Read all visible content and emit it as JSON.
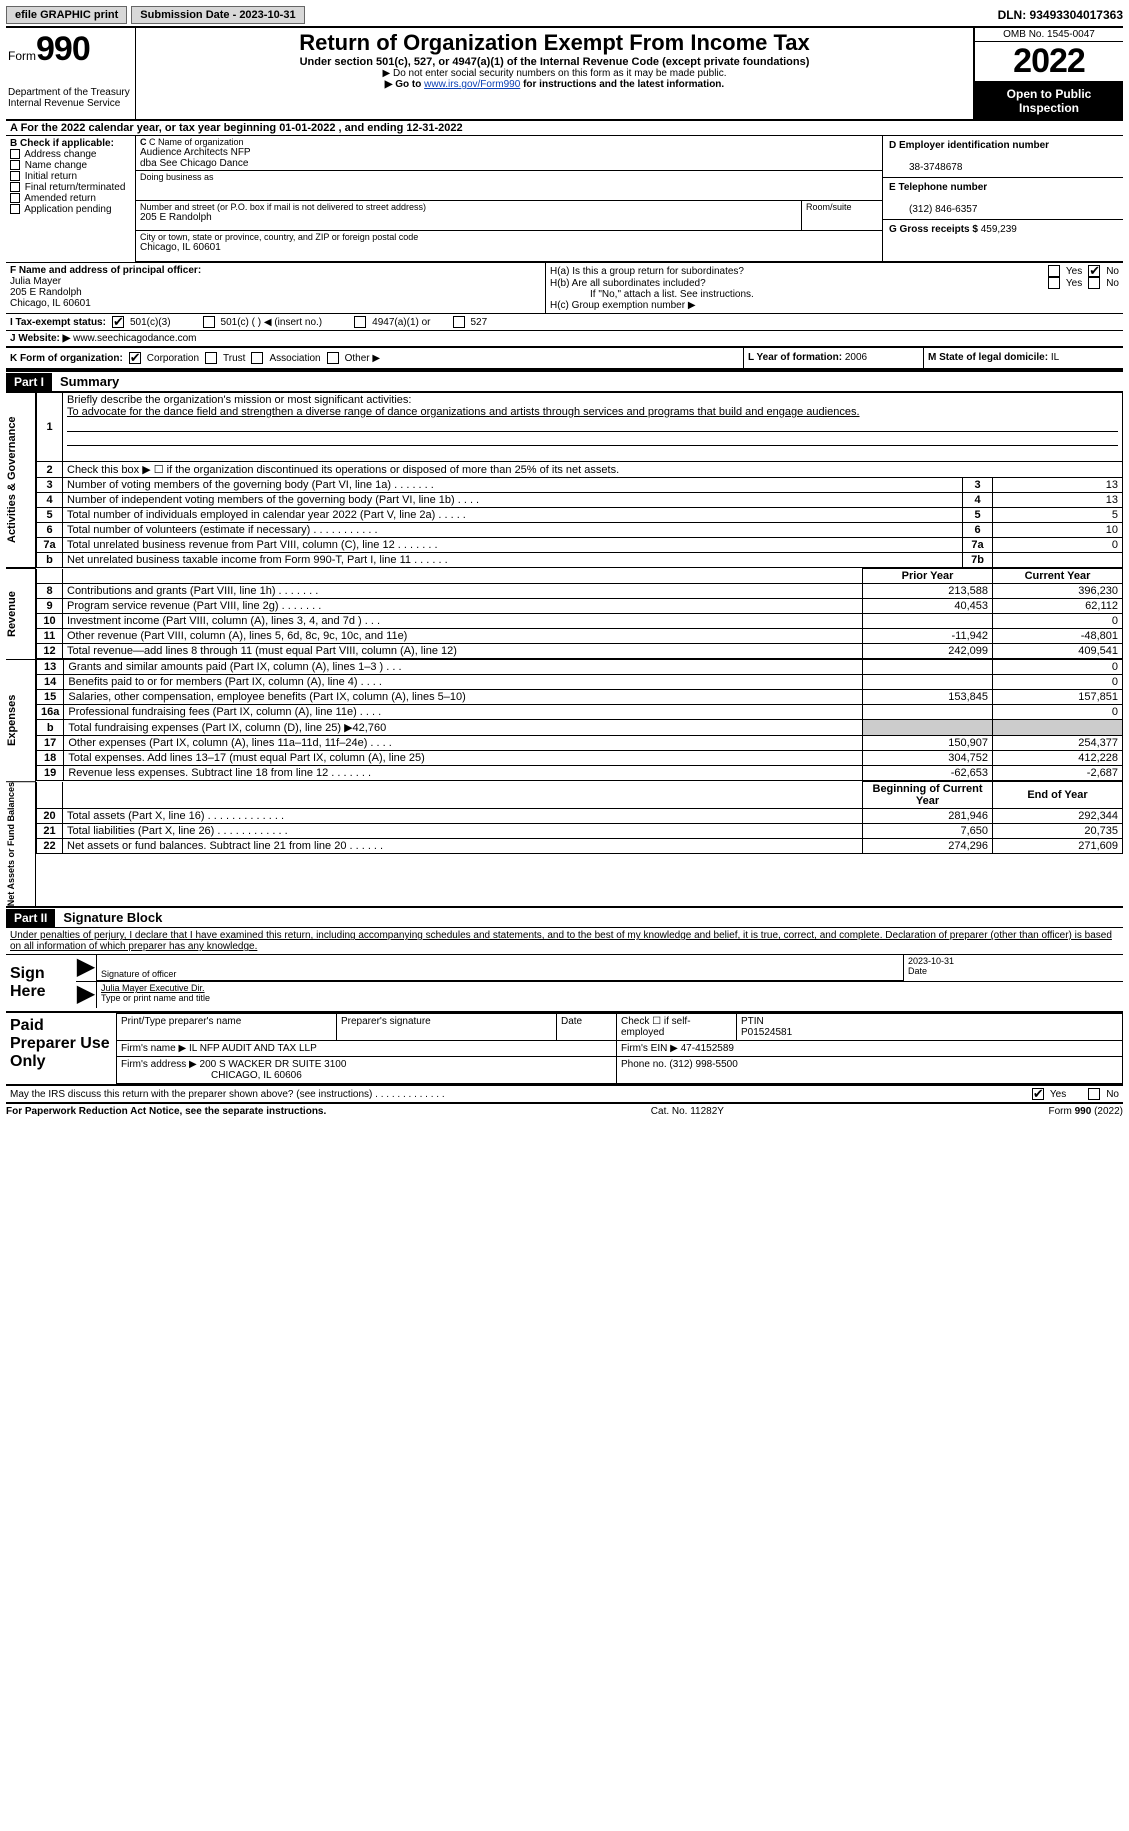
{
  "topbar": {
    "efile_label": "efile GRAPHIC print",
    "submission_label": "Submission Date - 2023-10-31",
    "dln_label": "DLN: 93493304017363"
  },
  "header": {
    "form_word": "Form",
    "form_num": "990",
    "dept": "Department of the Treasury Internal Revenue Service",
    "title": "Return of Organization Exempt From Income Tax",
    "sub1": "Under section 501(c), 527, or 4947(a)(1) of the Internal Revenue Code (except private foundations)",
    "sub2": "▶ Do not enter social security numbers on this form as it may be made public.",
    "sub3_pre": "▶ Go to ",
    "sub3_link": "www.irs.gov/Form990",
    "sub3_post": " for instructions and the latest information.",
    "omb": "OMB No. 1545-0047",
    "year": "2022",
    "inspect": "Open to Public Inspection"
  },
  "A": {
    "text": "A For the 2022 calendar year, or tax year beginning 01-01-2022    , and ending 12-31-2022"
  },
  "B": {
    "title": "B Check if applicable:",
    "opts": [
      "Address change",
      "Name change",
      "Initial return",
      "Final return/terminated",
      "Amended return",
      "Application pending"
    ]
  },
  "C": {
    "name_label": "C Name of organization",
    "name1": "Audience Architects NFP",
    "name2": "dba See Chicago Dance",
    "dba_label": "Doing business as",
    "street_label": "Number and street (or P.O. box if mail is not delivered to street address)",
    "suite_label": "Room/suite",
    "street": "205 E Randolph",
    "city_label": "City or town, state or province, country, and ZIP or foreign postal code",
    "city": "Chicago, IL  60601"
  },
  "D": {
    "label": "D Employer identification number",
    "value": "38-3748678"
  },
  "E": {
    "label": "E Telephone number",
    "value": "(312) 846-6357"
  },
  "G": {
    "label": "G Gross receipts $",
    "value": "459,239"
  },
  "F": {
    "label": "F  Name and address of principal officer:",
    "name": "Julia Mayer",
    "addr1": "205 E Randolph",
    "addr2": "Chicago, IL  60601"
  },
  "H": {
    "a": "H(a)  Is this a group return for subordinates?",
    "b": "H(b)  Are all subordinates included?",
    "b_note": "If \"No,\" attach a list. See instructions.",
    "c": "H(c)  Group exemption number ▶",
    "yes": "Yes",
    "no": "No"
  },
  "I": {
    "label": "I    Tax-exempt status:",
    "o1": "501(c)(3)",
    "o2": "501(c) (  ) ◀ (insert no.)",
    "o3": "4947(a)(1) or",
    "o4": "527"
  },
  "J": {
    "label": "J   Website: ▶",
    "value": "www.seechicagodance.com"
  },
  "K": {
    "label": "K Form of organization:",
    "o1": "Corporation",
    "o2": "Trust",
    "o3": "Association",
    "o4": "Other ▶"
  },
  "L": {
    "label": "L Year of formation:",
    "value": "2006"
  },
  "M": {
    "label": "M State of legal domicile:",
    "value": "IL"
  },
  "part1": {
    "bar": "Part I",
    "title": "Summary",
    "l1_label": "Briefly describe the organization's mission or most significant activities:",
    "l1_text": "To advocate for the dance field and strengthen a diverse range of dance organizations and artists through services and programs that build and engage audiences.",
    "l2": "Check this box ▶ ☐  if the organization discontinued its operations or disposed of more than 25% of its net assets.",
    "side_act": "Activities & Governance",
    "side_rev": "Revenue",
    "side_exp": "Expenses",
    "side_net": "Net Assets or Fund Balances",
    "hdr_prior": "Prior Year",
    "hdr_curr": "Current Year",
    "hdr_beg": "Beginning of Current Year",
    "hdr_end": "End of Year",
    "rows_gov": [
      {
        "n": "3",
        "d": "Number of voting members of the governing body (Part VI, line 1a)  .    .    .    .    .    .    .",
        "lbl": "3",
        "v": "13"
      },
      {
        "n": "4",
        "d": "Number of independent voting members of the governing body (Part VI, line 1b)  .    .    .    .",
        "lbl": "4",
        "v": "13"
      },
      {
        "n": "5",
        "d": "Total number of individuals employed in calendar year 2022 (Part V, line 2a)  .    .    .    .    .",
        "lbl": "5",
        "v": "5"
      },
      {
        "n": "6",
        "d": "Total number of volunteers (estimate if necessary)    .    .    .    .    .    .    .    .    .    .    .",
        "lbl": "6",
        "v": "10"
      },
      {
        "n": "7a",
        "d": "Total unrelated business revenue from Part VIII, column (C), line 12   .    .    .    .    .    .    .",
        "lbl": "7a",
        "v": "0"
      },
      {
        "n": "b",
        "d": "Net unrelated business taxable income from Form 990-T, Part I, line 11  .    .    .    .    .    .",
        "lbl": "7b",
        "v": ""
      }
    ],
    "rows_rev": [
      {
        "n": "8",
        "d": "Contributions and grants (Part VIII, line 1h)    .    .    .    .    .    .    .",
        "p": "213,588",
        "c": "396,230"
      },
      {
        "n": "9",
        "d": "Program service revenue (Part VIII, line 2g)   .    .    .    .    .    .    .",
        "p": "40,453",
        "c": "62,112"
      },
      {
        "n": "10",
        "d": "Investment income (Part VIII, column (A), lines 3, 4, and 7d )   .    .    .",
        "p": "",
        "c": "0"
      },
      {
        "n": "11",
        "d": "Other revenue (Part VIII, column (A), lines 5, 6d, 8c, 9c, 10c, and 11e)",
        "p": "-11,942",
        "c": "-48,801"
      },
      {
        "n": "12",
        "d": "Total revenue—add lines 8 through 11 (must equal Part VIII, column (A), line 12)",
        "p": "242,099",
        "c": "409,541"
      }
    ],
    "rows_exp": [
      {
        "n": "13",
        "d": "Grants and similar amounts paid (Part IX, column (A), lines 1–3 )   .    .    .",
        "p": "",
        "c": "0"
      },
      {
        "n": "14",
        "d": "Benefits paid to or for members (Part IX, column (A), line 4)   .    .    .    .",
        "p": "",
        "c": "0"
      },
      {
        "n": "15",
        "d": "Salaries, other compensation, employee benefits (Part IX, column (A), lines 5–10)",
        "p": "153,845",
        "c": "157,851"
      },
      {
        "n": "16a",
        "d": "Professional fundraising fees (Part IX, column (A), line 11e)   .    .    .    .",
        "p": "",
        "c": "0"
      },
      {
        "n": "b",
        "d": "Total fundraising expenses (Part IX, column (D), line 25) ▶42,760",
        "p": "shade",
        "c": "shade"
      },
      {
        "n": "17",
        "d": "Other expenses (Part IX, column (A), lines 11a–11d, 11f–24e)   .    .    .    .",
        "p": "150,907",
        "c": "254,377"
      },
      {
        "n": "18",
        "d": "Total expenses. Add lines 13–17 (must equal Part IX, column (A), line 25)",
        "p": "304,752",
        "c": "412,228"
      },
      {
        "n": "19",
        "d": "Revenue less expenses. Subtract line 18 from line 12 .    .    .    .    .    .    .",
        "p": "-62,653",
        "c": "-2,687"
      }
    ],
    "rows_net": [
      {
        "n": "20",
        "d": "Total assets (Part X, line 16) .    .    .    .    .    .    .    .    .    .    .    .    .",
        "p": "281,946",
        "c": "292,344"
      },
      {
        "n": "21",
        "d": "Total liabilities (Part X, line 26) .    .    .    .    .    .    .    .    .    .    .    .",
        "p": "7,650",
        "c": "20,735"
      },
      {
        "n": "22",
        "d": "Net assets or fund balances. Subtract line 21 from line 20 .    .    .    .    .    .",
        "p": "274,296",
        "c": "271,609"
      }
    ]
  },
  "part2": {
    "bar": "Part II",
    "title": "Signature Block",
    "decl": "Under penalties of perjury, I declare that I have examined this return, including accompanying schedules and statements, and to the best of my knowledge and belief, it is true, correct, and complete. Declaration of preparer (other than officer) is based on all information of which preparer has any knowledge.",
    "sign_here": "Sign Here",
    "sig_officer": "Signature of officer",
    "sig_date": "Date",
    "sig_date_val": "2023-10-31",
    "typed_name": "Julia Mayer  Executive Dir.",
    "typed_label": "Type or print name and title",
    "paid_label": "Paid Preparer Use Only",
    "prep_name_h": "Print/Type preparer's name",
    "prep_sig_h": "Preparer's signature",
    "prep_date_h": "Date",
    "prep_check": "Check ☐ if self-employed",
    "ptin_h": "PTIN",
    "ptin": "P01524581",
    "firm_name_l": "Firm's name     ▶",
    "firm_name": "IL NFP AUDIT AND TAX LLP",
    "firm_ein_l": "Firm's EIN ▶",
    "firm_ein": "47-4152589",
    "firm_addr_l": "Firm's address ▶",
    "firm_addr1": "200 S WACKER DR SUITE 3100",
    "firm_addr2": "CHICAGO, IL  60606",
    "phone_l": "Phone no.",
    "phone": "(312) 998-5500",
    "discuss": "May the IRS discuss this return with the preparer shown above? (see instructions)   .    .    .    .    .    .    .    .    .    .    .    .    .",
    "yes": "Yes",
    "no": "No"
  },
  "footer": {
    "left": "For Paperwork Reduction Act Notice, see the separate instructions.",
    "mid": "Cat. No. 11282Y",
    "right": "Form 990 (2022)"
  }
}
